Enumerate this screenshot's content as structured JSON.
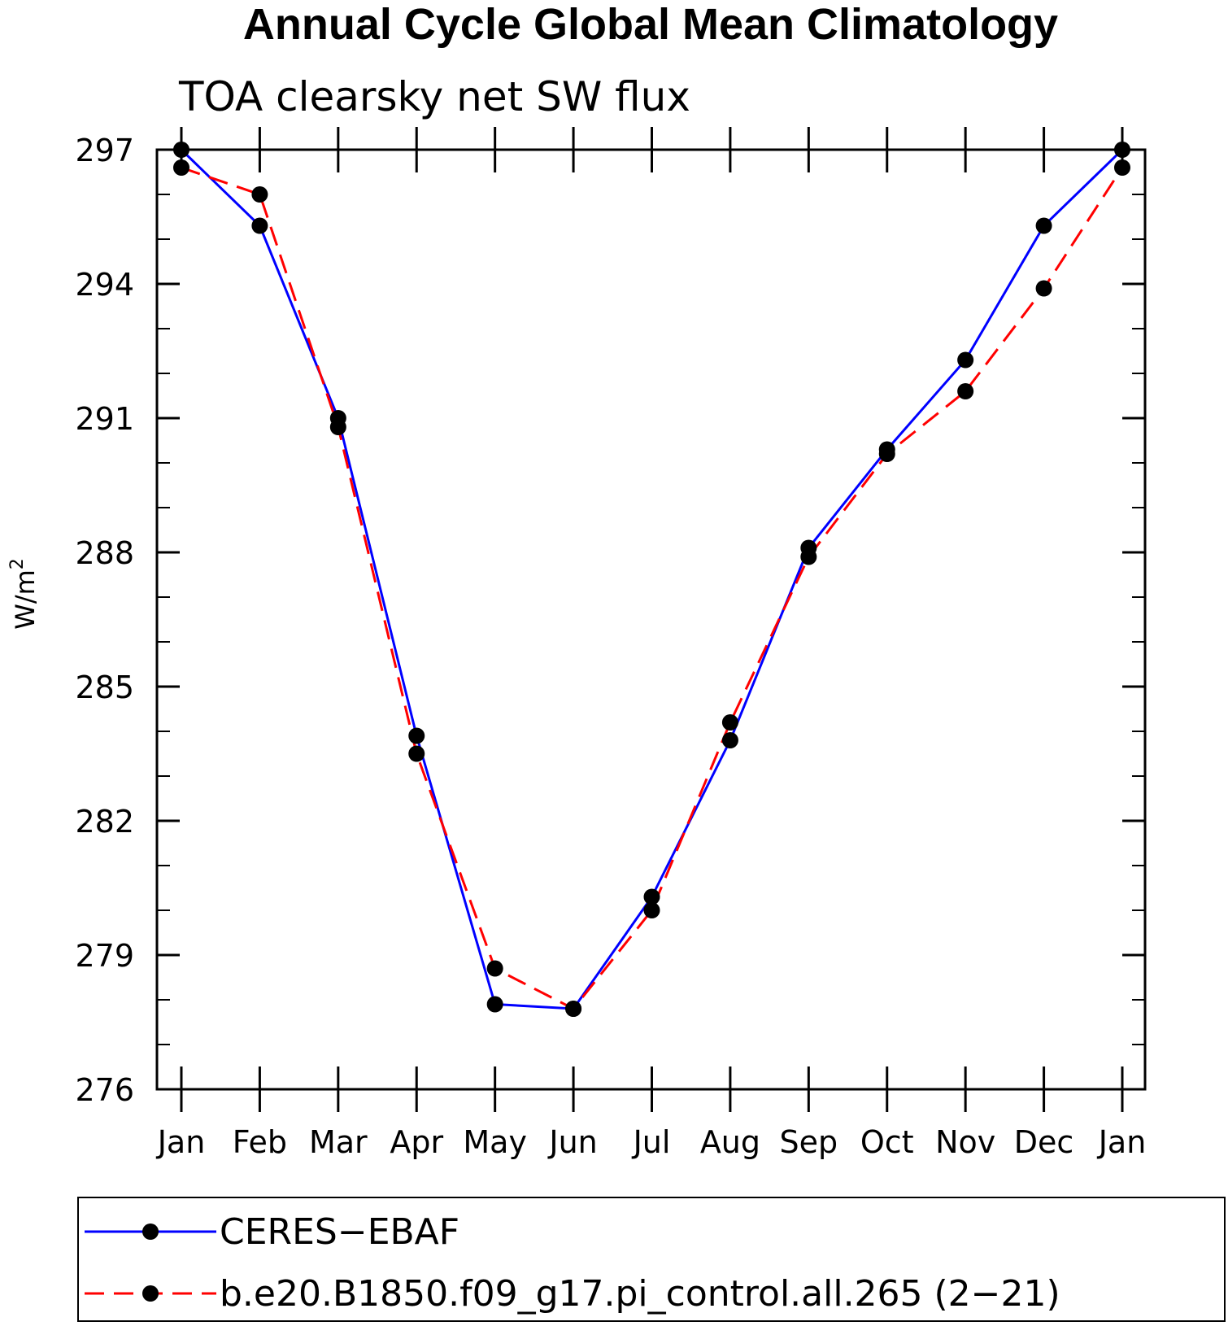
{
  "chart_data": {
    "type": "line",
    "title": "Annual Cycle Global Mean Climatology",
    "subtitle": "TOA clearsky net SW flux",
    "ylabel": "W/m",
    "ylabel_superscript": "2",
    "xlabel": "",
    "categories": [
      "Jan",
      "Feb",
      "Mar",
      "Apr",
      "May",
      "Jun",
      "Jul",
      "Aug",
      "Sep",
      "Oct",
      "Nov",
      "Dec",
      "Jan"
    ],
    "ylim": [
      276,
      297
    ],
    "yticks": [
      276,
      279,
      282,
      285,
      288,
      291,
      294,
      297
    ],
    "legend_position": "bottom",
    "series": [
      {
        "name": "CERES−EBAF",
        "color": "#0000ff",
        "style": "solid",
        "values": [
          297.0,
          295.3,
          291.0,
          283.9,
          277.9,
          277.8,
          280.3,
          283.8,
          288.1,
          290.3,
          292.3,
          295.3,
          297.0
        ]
      },
      {
        "name": "b.e20.B1850.f09_g17.pi_control.all.265 (2−21)",
        "color": "#ff0000",
        "style": "dashed",
        "values": [
          296.6,
          296.0,
          290.8,
          283.5,
          278.7,
          277.8,
          280.0,
          284.2,
          287.9,
          290.2,
          291.6,
          293.9,
          296.6
        ]
      }
    ]
  }
}
